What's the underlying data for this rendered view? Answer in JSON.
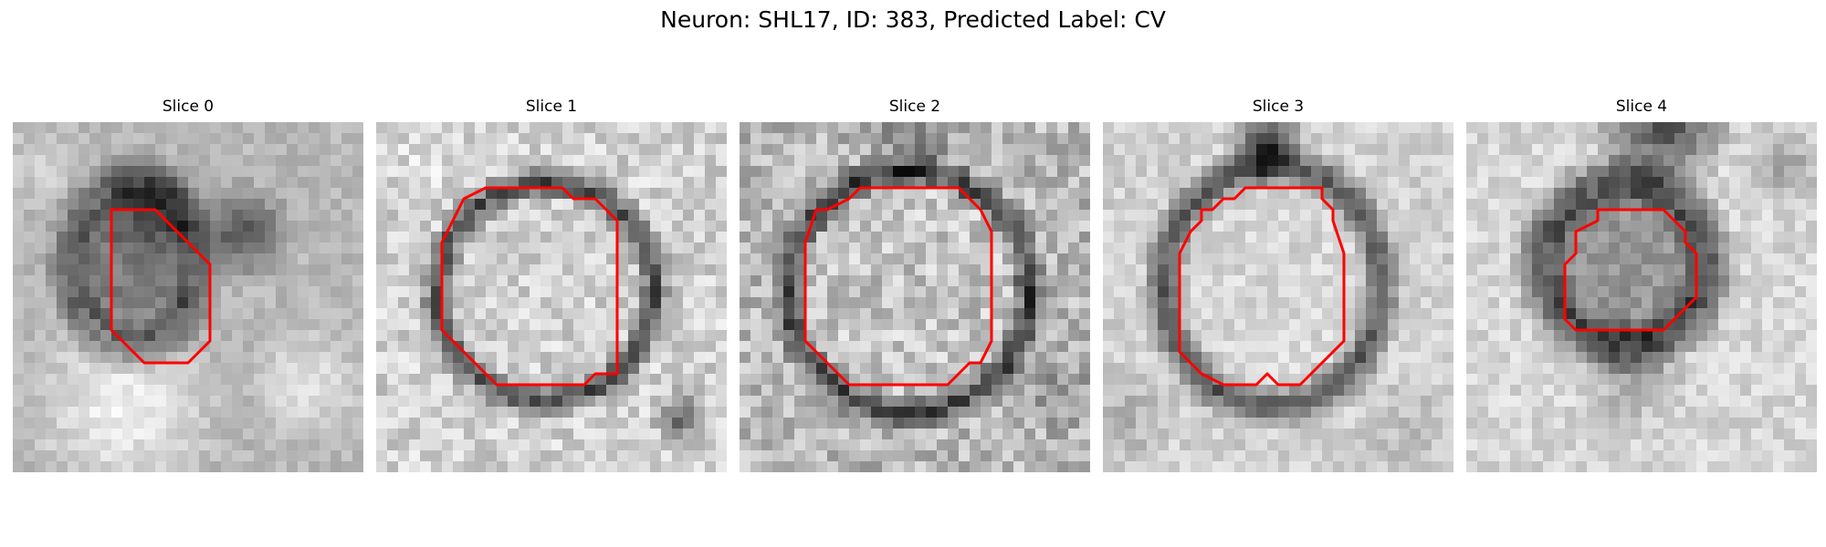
{
  "figure": {
    "title": "Neuron: SHL17, ID: 383, Predicted Label: CV"
  },
  "panels": [
    {
      "title": "Slice 0"
    },
    {
      "title": "Slice 1"
    },
    {
      "title": "Slice 2"
    },
    {
      "title": "Slice 3"
    },
    {
      "title": "Slice 4"
    }
  ],
  "colors": {
    "contour": "#ff0000",
    "background": "#ffffff"
  }
}
